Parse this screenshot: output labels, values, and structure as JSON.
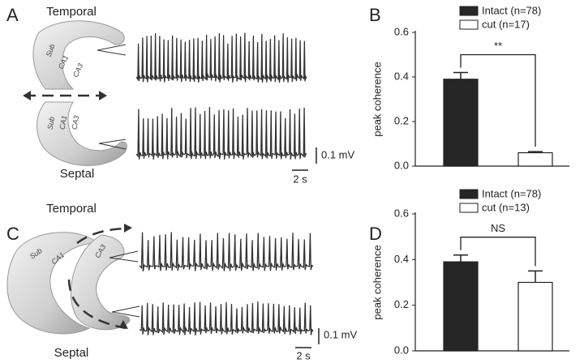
{
  "panels": {
    "a": {
      "label": "A",
      "temporal": "Temporal",
      "septal": "Septal",
      "top": {
        "sub": "Sub",
        "ca1": "CA1",
        "ca3": "CA3"
      },
      "bottom": {
        "sub": "Sub",
        "ca1": "CA1",
        "ca3": "CA3"
      },
      "scale_v": "0.1 mV",
      "scale_t": "2 s"
    },
    "c": {
      "label": "C",
      "temporal": "Temporal",
      "septal": "Septal",
      "sub": "Sub",
      "ca1": "CA1",
      "ca3": "CA3",
      "scale_v": "0.1 mV",
      "scale_t": "2 s"
    }
  },
  "chart_data": [
    {
      "type": "bar",
      "panel": "B",
      "ylabel": "peak coherence",
      "categories": [
        null
      ],
      "series": [
        {
          "name": "Intact (n=78)",
          "color": "#262626",
          "values": [
            0.39
          ],
          "errors": [
            0.03
          ]
        },
        {
          "name": "cut (n=17)",
          "color": "#ffffff",
          "values": [
            0.06
          ],
          "errors": [
            0.005
          ]
        }
      ],
      "ylim": [
        0,
        0.6
      ],
      "yticks": [
        {
          "value": 0,
          "label": "0.0"
        },
        0.2,
        0.4,
        0.6
      ],
      "annotation": "**"
    },
    {
      "type": "bar",
      "panel": "D",
      "ylabel": "peak coherence",
      "categories": [
        null
      ],
      "series": [
        {
          "name": "Intact (n=78)",
          "color": "#262626",
          "values": [
            0.39
          ],
          "errors": [
            0.03
          ]
        },
        {
          "name": "cut (n=13)",
          "color": "#ffffff",
          "values": [
            0.3
          ],
          "errors": [
            0.05
          ]
        }
      ],
      "ylim": [
        0,
        0.6
      ],
      "yticks": [
        {
          "value": 0,
          "label": "0.0"
        },
        0.2,
        0.4,
        0.6
      ],
      "annotation": "NS"
    }
  ]
}
